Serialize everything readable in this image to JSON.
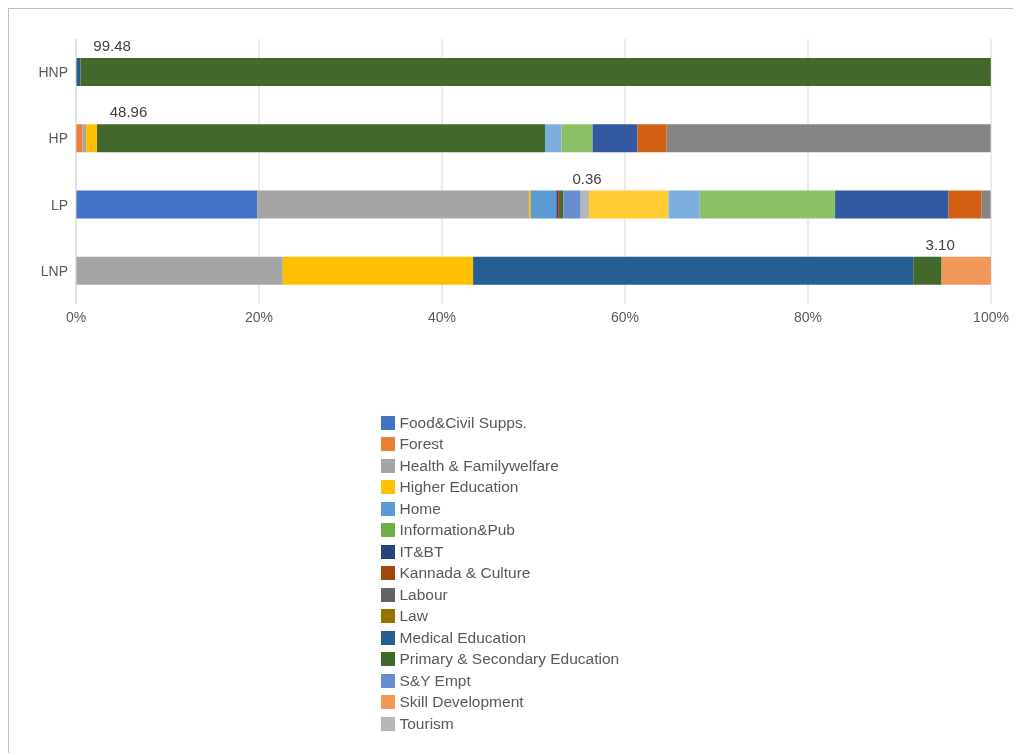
{
  "chart_data": {
    "type": "bar",
    "orientation": "horizontal",
    "stacked": true,
    "categories": [
      "HNP",
      "HP",
      "LP",
      "LNP"
    ],
    "xlim": [
      0,
      100
    ],
    "xticks": [
      {
        "value": 0,
        "label": "0%"
      },
      {
        "value": 20,
        "label": "20%"
      },
      {
        "value": 40,
        "label": "40%"
      },
      {
        "value": 60,
        "label": "60%"
      },
      {
        "value": 80,
        "label": "80%"
      },
      {
        "value": 100,
        "label": "100%"
      }
    ],
    "grid": "x",
    "legend": "bottom",
    "series": [
      {
        "name": "Food&Civil Supps.",
        "color": "#4472c4",
        "values": [
          null,
          null,
          19.8,
          null
        ]
      },
      {
        "name": "Forest",
        "color": "#ed7d31",
        "values": [
          null,
          0.7,
          null,
          null
        ]
      },
      {
        "name": "Health & Familywelfare",
        "color": "#a5a5a5",
        "values": [
          null,
          0.4,
          29.7,
          22.6
        ]
      },
      {
        "name": "Higher Education",
        "color": "#ffc000",
        "values": [
          null,
          1.2,
          0.2,
          20.8
        ]
      },
      {
        "name": "Home",
        "color": "#5b9bd5",
        "values": [
          null,
          null,
          2.8,
          null
        ]
      },
      {
        "name": "Information&Pub",
        "color": "#70ad47",
        "values": [
          null,
          null,
          null,
          null
        ]
      },
      {
        "name": "IT&BT",
        "color": "#264478",
        "values": [
          null,
          null,
          0.2,
          null
        ]
      },
      {
        "name": "Kannada & Culture",
        "color": "#9e480e",
        "values": [
          null,
          null,
          0.2,
          null
        ]
      },
      {
        "name": "Labour",
        "color": "#636363",
        "values": [
          null,
          null,
          null,
          null
        ]
      },
      {
        "name": "Law",
        "color": "#997300",
        "values": [
          null,
          null,
          null,
          null
        ]
      },
      {
        "name": "Medical Education",
        "color": "#255e91",
        "values": [
          0.5,
          null,
          null,
          48.1
        ]
      },
      {
        "name": "Primary & Secondary Education",
        "color": "#43682b",
        "values": [
          99.48,
          48.96,
          0.36,
          3.1
        ],
        "value_labels": [
          "99.48",
          "48.96",
          "0.36",
          "3.10"
        ]
      },
      {
        "name": "S&Y Empt",
        "color": "#698ed0",
        "values": [
          null,
          null,
          1.9,
          null
        ]
      },
      {
        "name": "Skill Development",
        "color": "#f1975a",
        "values": [
          null,
          null,
          null,
          5.4
        ]
      },
      {
        "name": "Tourism",
        "color": "#b7b7b7",
        "values": [
          null,
          null,
          0.9,
          null
        ]
      },
      {
        "color": "#ffcd33",
        "values": [
          null,
          null,
          8.7,
          null
        ]
      },
      {
        "color": "#7cafdd",
        "values": [
          null,
          1.8,
          3.4,
          null
        ]
      },
      {
        "color": "#8cc168",
        "values": [
          null,
          3.4,
          14.8,
          null
        ]
      },
      {
        "color": "#335aa1",
        "values": [
          null,
          4.9,
          12.4,
          null
        ]
      },
      {
        "color": "#d26012",
        "values": [
          null,
          3.2,
          3.6,
          null
        ]
      },
      {
        "color": "#848484",
        "values": [
          null,
          35.4,
          1.0,
          null
        ]
      }
    ]
  }
}
